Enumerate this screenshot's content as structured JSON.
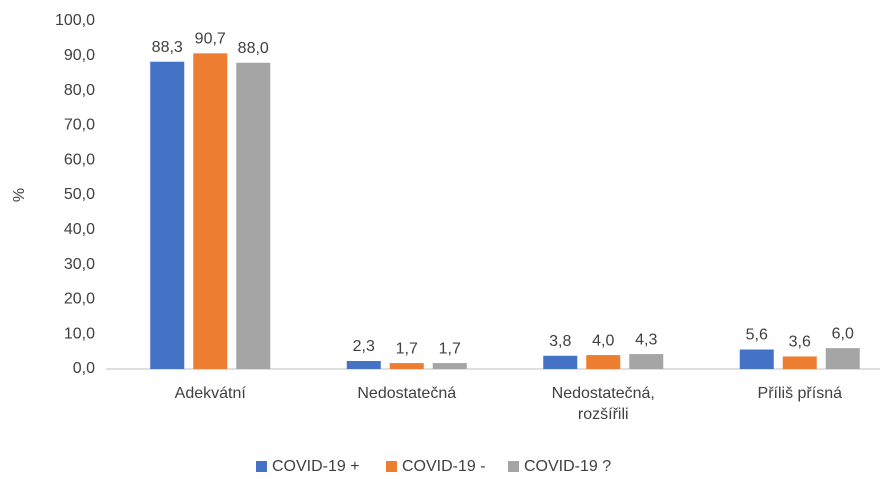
{
  "chart_data": {
    "type": "bar",
    "y_label": "%",
    "categories": [
      "Adekvátní",
      "Nedostatečná",
      "Nedostatečná, rozšířili",
      "Příliš přísná"
    ],
    "series": [
      {
        "name": "COVID-19 +",
        "color": "#4472c4",
        "values": [
          88.3,
          2.3,
          3.8,
          5.6
        ],
        "value_labels": [
          "88,3",
          "2,3",
          "3,8",
          "5,6"
        ]
      },
      {
        "name": "COVID-19 -",
        "color": "#ed7d31",
        "values": [
          90.7,
          1.7,
          4.0,
          3.6
        ],
        "value_labels": [
          "90,7",
          "1,7",
          "4,0",
          "3,6"
        ]
      },
      {
        "name": "COVID-19 ?",
        "color": "#a5a5a5",
        "values": [
          88.0,
          1.7,
          4.3,
          6.0
        ],
        "value_labels": [
          "88,0",
          "1,7",
          "4,3",
          "6,0"
        ]
      }
    ],
    "ylim": [
      0,
      100
    ],
    "yticks": [
      {
        "value": 0,
        "label": "0,0"
      },
      {
        "value": 10,
        "label": "10,0"
      },
      {
        "value": 20,
        "label": "20,0"
      },
      {
        "value": 30,
        "label": "30,0"
      },
      {
        "value": 40,
        "label": "40,0"
      },
      {
        "value": 50,
        "label": "50,0"
      },
      {
        "value": 60,
        "label": "60,0"
      },
      {
        "value": 70,
        "label": "70,0"
      },
      {
        "value": 80,
        "label": "80,0"
      },
      {
        "value": 90,
        "label": "90,0"
      },
      {
        "value": 100,
        "label": "100,0"
      }
    ],
    "grid": false,
    "legend": "bottom"
  }
}
